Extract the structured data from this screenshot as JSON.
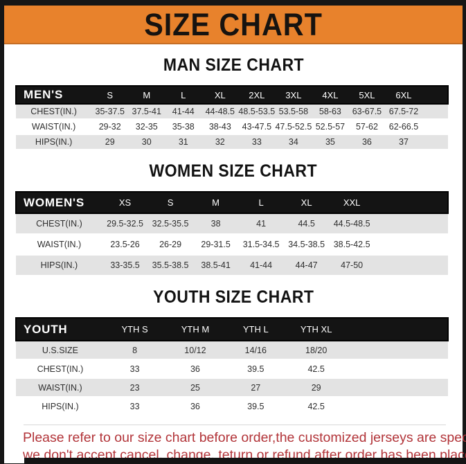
{
  "banner": {
    "title": "SIZE CHART",
    "bg_color": "#E8822C",
    "text_color": "#171310"
  },
  "sections": [
    {
      "heading": "MAN SIZE CHART",
      "table": {
        "header_label": "MEN'S",
        "columns": [
          "S",
          "M",
          "L",
          "XL",
          "2XL",
          "3XL",
          "4XL",
          "5XL",
          "6XL"
        ],
        "rows": [
          {
            "label": "CHEST(IN.)",
            "values": [
              "35-37.5",
              "37.5-41",
              "41-44",
              "44-48.5",
              "48.5-53.5",
              "53.5-58",
              "58-63",
              "63-67.5",
              "67.5-72"
            ]
          },
          {
            "label": "WAIST(IN.)",
            "values": [
              "29-32",
              "32-35",
              "35-38",
              "38-43",
              "43-47.5",
              "47.5-52.5",
              "52.5-57",
              "57-62",
              "62-66.5"
            ]
          },
          {
            "label": "HIPS(IN.)",
            "values": [
              "29",
              "30",
              "31",
              "32",
              "33",
              "34",
              "35",
              "36",
              "37"
            ]
          }
        ]
      }
    },
    {
      "heading": "WOMEN SIZE CHART",
      "table": {
        "header_label": "WOMEN'S",
        "columns": [
          "XS",
          "S",
          "M",
          "L",
          "XL",
          "XXL"
        ],
        "rows": [
          {
            "label": "CHEST(IN.)",
            "values": [
              "29.5-32.5",
              "32.5-35.5",
              "38",
              "41",
              "44.5",
              "44.5-48.5"
            ]
          },
          {
            "label": "WAIST(IN.)",
            "values": [
              "23.5-26",
              "26-29",
              "29-31.5",
              "31.5-34.5",
              "34.5-38.5",
              "38.5-42.5"
            ]
          },
          {
            "label": "HIPS(IN.)",
            "values": [
              "33-35.5",
              "35.5-38.5",
              "38.5-41",
              "41-44",
              "44-47",
              "47-50"
            ]
          }
        ]
      }
    },
    {
      "heading": "YOUTH SIZE CHART",
      "table": {
        "header_label": "YOUTH",
        "columns": [
          "YTH S",
          "YTH M",
          "YTH L",
          "YTH XL"
        ],
        "rows": [
          {
            "label": "U.S.SIZE",
            "values": [
              "8",
              "10/12",
              "14/16",
              "18/20"
            ]
          },
          {
            "label": "CHEST(IN.)",
            "values": [
              "33",
              "36",
              "39.5",
              "42.5"
            ]
          },
          {
            "label": "WAIST(IN.)",
            "values": [
              "23",
              "25",
              "27",
              "29"
            ]
          },
          {
            "label": "HIPS(IN.)",
            "values": [
              "33",
              "36",
              "39.5",
              "42.5"
            ]
          }
        ]
      }
    }
  ],
  "footer": {
    "line1": "Please refer to our size chart before order,the customized jerseys are special products,",
    "line2": "we don't accept cancel, change, teturn or refund after order has been placed!",
    "text_color": "#B23439"
  },
  "colors": {
    "frame": "#161616",
    "table_header_bg": "#141414",
    "row_shade": "#E3E3E3"
  }
}
